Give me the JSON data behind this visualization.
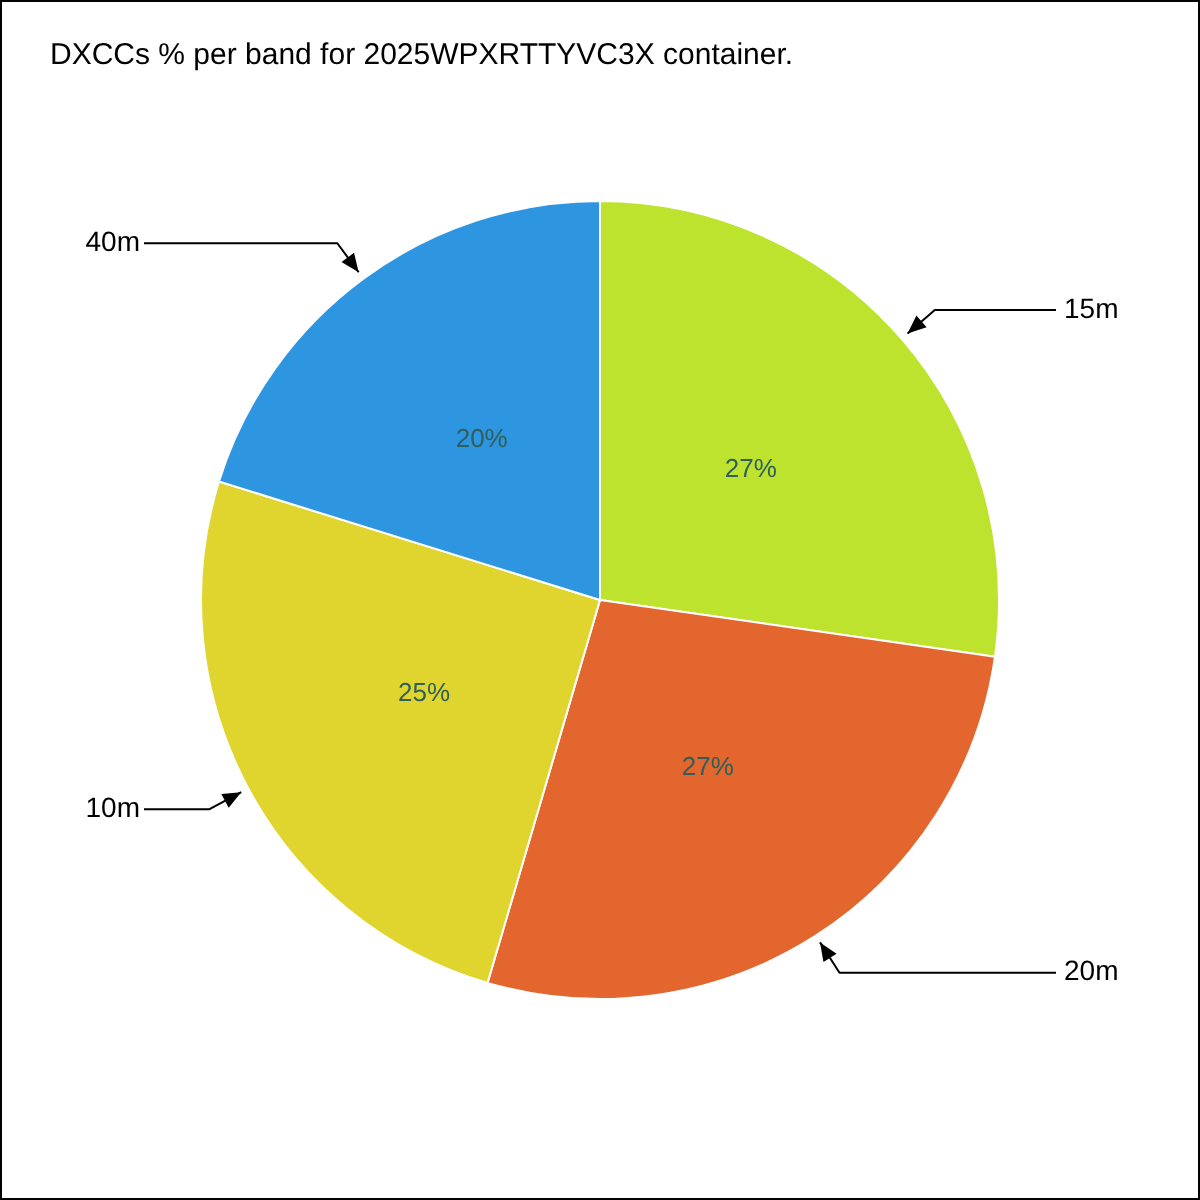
{
  "chart_data": {
    "type": "pie",
    "title": "DXCCs % per band for 2025WPXRTTYVC3X container.",
    "categories": [
      "15m",
      "20m",
      "10m",
      "40m"
    ],
    "values": [
      27,
      27,
      25,
      20
    ],
    "value_labels": [
      "27%",
      "27%",
      "25%",
      "20%"
    ],
    "colors": [
      "#bee32e",
      "#e2662e",
      "#e0d52e",
      "#2e96e0"
    ],
    "legend": false
  }
}
